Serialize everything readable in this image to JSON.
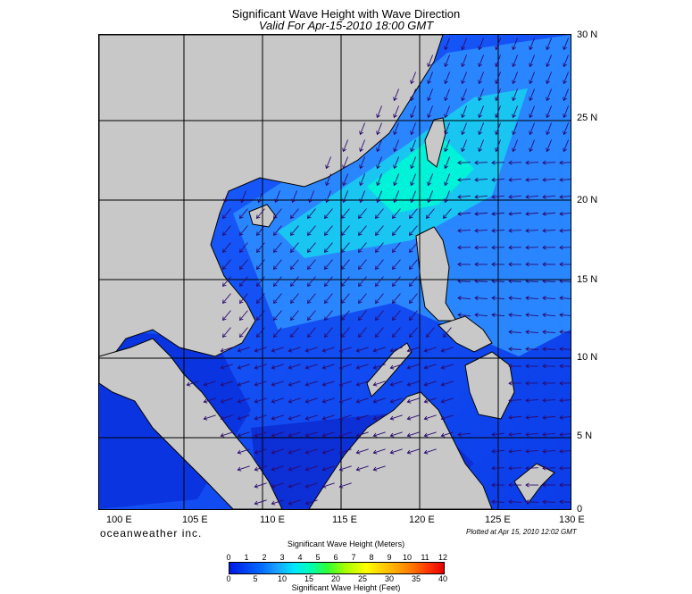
{
  "header": {
    "title": "Significant Wave Height with Wave Direction",
    "subtitle": "Valid For Apr-15-2010 18:00 GMT"
  },
  "map": {
    "lat_labels": [
      "30 N",
      "25 N",
      "20 N",
      "15 N",
      "10 N",
      "5 N",
      "0"
    ],
    "lon_labels": [
      "100 E",
      "105 E",
      "110 E",
      "115 E",
      "120 E",
      "125 E",
      "130 E"
    ],
    "lat_range": [
      0,
      30
    ],
    "lon_range": [
      100,
      130
    ],
    "land_color": "#c8c8c8",
    "grid_color": "#000000",
    "arrow_color": "#2a0a6e",
    "wave_direction_trend": "NE monsoon: arrows point SW in the northern half, W near the Philippines, W-SW to WSW in the south"
  },
  "footer": {
    "brand": "oceanweather inc.",
    "plotted": "Plotted at Apr 15, 2010 12:02 GMT"
  },
  "colorbar": {
    "title_meters": "Significant Wave Height (Meters)",
    "title_feet": "Significant Wave Height (Feet)",
    "ticks_meters": [
      "0",
      "1",
      "2",
      "3",
      "4",
      "5",
      "6",
      "7",
      "8",
      "9",
      "10",
      "11",
      "12"
    ],
    "ticks_feet": [
      "0",
      "5",
      "10",
      "15",
      "20",
      "25",
      "30",
      "35",
      "40"
    ]
  }
}
